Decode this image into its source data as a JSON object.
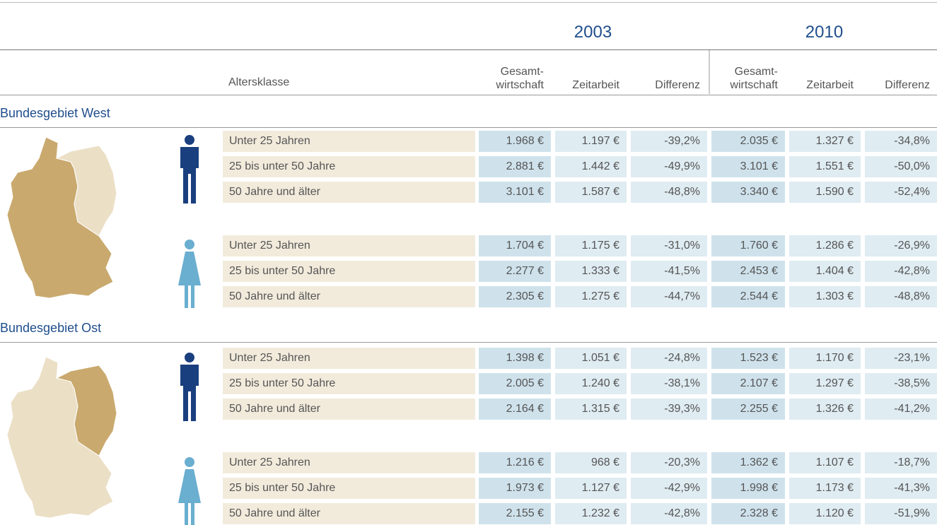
{
  "header": {
    "years": [
      "2003",
      "2010"
    ],
    "age_class": "Altersklasse",
    "columns": [
      "Gesamt-\nwirtschaft",
      "Zeitarbeit",
      "Differenz",
      "Gesamt-\nwirtschaft",
      "Zeitarbeit",
      "Differenz"
    ]
  },
  "sections": [
    {
      "title": "Bundesgebiet West",
      "groups": [
        {
          "rows": [
            {
              "label": "Unter 25 Jahren",
              "values": [
                "1.968 €",
                "1.197 €",
                "-39,2%",
                "2.035 €",
                "1.327 €",
                "-34,8%"
              ]
            },
            {
              "label": "25 bis unter 50 Jahre",
              "values": [
                "2.881 €",
                "1.442 €",
                "-49,9%",
                "3.101 €",
                "1.551 €",
                "-50,0%"
              ]
            },
            {
              "label": "50 Jahre und älter",
              "values": [
                "3.101 €",
                "1.587 €",
                "-48,8%",
                "3.340 €",
                "1.590 €",
                "-52,4%"
              ]
            }
          ]
        },
        {
          "rows": [
            {
              "label": "Unter 25 Jahren",
              "values": [
                "1.704 €",
                "1.175 €",
                "-31,0%",
                "1.760 €",
                "1.286 €",
                "-26,9%"
              ]
            },
            {
              "label": "25 bis unter 50 Jahre",
              "values": [
                "2.277 €",
                "1.333 €",
                "-41,5%",
                "2.453 €",
                "1.404 €",
                "-42,8%"
              ]
            },
            {
              "label": "50 Jahre und älter",
              "values": [
                "2.305 €",
                "1.275 €",
                "-44,7%",
                "2.544 €",
                "1.303 €",
                "-48,8%"
              ]
            }
          ]
        }
      ]
    },
    {
      "title": "Bundesgebiet Ost",
      "groups": [
        {
          "rows": [
            {
              "label": "Unter 25 Jahren",
              "values": [
                "1.398 €",
                "1.051 €",
                "-24,8%",
                "1.523 €",
                "1.170 €",
                "-23,1%"
              ]
            },
            {
              "label": "25 bis unter 50 Jahre",
              "values": [
                "2.005 €",
                "1.240 €",
                "-38,1%",
                "2.107 €",
                "1.297 €",
                "-38,5%"
              ]
            },
            {
              "label": "50 Jahre und älter",
              "values": [
                "2.164 €",
                "1.315 €",
                "-39,3%",
                "2.255 €",
                "1.326 €",
                "-41,2%"
              ]
            }
          ]
        },
        {
          "rows": [
            {
              "label": "Unter 25 Jahren",
              "values": [
                "1.216 €",
                "968 €",
                "-20,3%",
                "1.362 €",
                "1.107 €",
                "-18,7%"
              ]
            },
            {
              "label": "25 bis unter 50 Jahre",
              "values": [
                "1.973 €",
                "1.127 €",
                "-42,9%",
                "1.998 €",
                "1.173 €",
                "-41,3%"
              ]
            },
            {
              "label": "50 Jahre und älter",
              "values": [
                "2.155 €",
                "1.232 €",
                "-42,8%",
                "2.328 €",
                "1.120 €",
                "-51,9%"
              ]
            }
          ]
        }
      ]
    }
  ]
}
